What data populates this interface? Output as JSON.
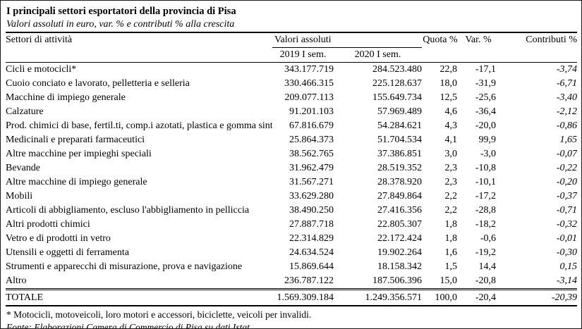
{
  "title": "I principali settori esportatori della provincia di Pisa",
  "subtitle": "Valori assoluti in euro, var. % e contributi % alla crescita",
  "table": {
    "headers": {
      "sector": "Settori di attività",
      "group_values": "Valori assoluti",
      "col_2019": "2019 I sem.",
      "col_2020": "2020 I sem.",
      "quota": "Quota %",
      "var": "Var. %",
      "contrib": "Contributi %"
    },
    "rows": [
      {
        "sector": "Cicli e motocicli*",
        "v2019": "343.177.719",
        "v2020": "284.523.480",
        "quota": "22,8",
        "var": "-17,1",
        "contrib": "-3,74"
      },
      {
        "sector": "Cuoio conciato e lavorato, pelletteria e selleria",
        "v2019": "330.466.315",
        "v2020": "225.128.637",
        "quota": "18,0",
        "var": "-31,9",
        "contrib": "-6,71"
      },
      {
        "sector": "Macchine di impiego generale",
        "v2019": "209.077.113",
        "v2020": "155.649.734",
        "quota": "12,5",
        "var": "-25,6",
        "contrib": "-3,40"
      },
      {
        "sector": "Calzature",
        "v2019": "91.201.103",
        "v2020": "57.969.489",
        "quota": "4,6",
        "var": "-36,4",
        "contrib": "-2,12"
      },
      {
        "sector": "Prod. chimici di base, fertil.ti, comp.i azotati, plastica e gomma sint.",
        "v2019": "67.816.679",
        "v2020": "54.284.621",
        "quota": "4,3",
        "var": "-20,0",
        "contrib": "-0,86"
      },
      {
        "sector": "Medicinali e preparati farmaceutici",
        "v2019": "25.864.373",
        "v2020": "51.704.534",
        "quota": "4,1",
        "var": "99,9",
        "contrib": "1,65"
      },
      {
        "sector": "Altre macchine per impieghi speciali",
        "v2019": "38.562.765",
        "v2020": "37.386.851",
        "quota": "3,0",
        "var": "-3,0",
        "contrib": "-0,07"
      },
      {
        "sector": "Bevande",
        "v2019": "31.962.479",
        "v2020": "28.519.352",
        "quota": "2,3",
        "var": "-10,8",
        "contrib": "-0,22"
      },
      {
        "sector": "Altre macchine di impiego generale",
        "v2019": "31.567.271",
        "v2020": "28.378.920",
        "quota": "2,3",
        "var": "-10,1",
        "contrib": "-0,20"
      },
      {
        "sector": "Mobili",
        "v2019": "33.629.280",
        "v2020": "27.849.864",
        "quota": "2,2",
        "var": "-17,2",
        "contrib": "-0,37"
      },
      {
        "sector": "Articoli di abbigliamento, escluso l'abbigliamento in pelliccia",
        "v2019": "38.490.250",
        "v2020": "27.416.356",
        "quota": "2,2",
        "var": "-28,8",
        "contrib": "-0,71"
      },
      {
        "sector": "Altri prodotti chimici",
        "v2019": "27.887.718",
        "v2020": "22.805.307",
        "quota": "1,8",
        "var": "-18,2",
        "contrib": "-0,32"
      },
      {
        "sector": "Vetro e di prodotti in vetro",
        "v2019": "22.314.829",
        "v2020": "22.172.424",
        "quota": "1,8",
        "var": "-0,6",
        "contrib": "-0,01"
      },
      {
        "sector": "Utensili e oggetti di ferramenta",
        "v2019": "24.634.524",
        "v2020": "19.902.264",
        "quota": "1,6",
        "var": "-19,2",
        "contrib": "-0,30"
      },
      {
        "sector": "Strumenti e apparecchi di misurazione, prova e navigazione",
        "v2019": "15.869.644",
        "v2020": "18.158.342",
        "quota": "1,5",
        "var": "14,4",
        "contrib": "0,15"
      },
      {
        "sector": "Altro",
        "v2019": "236.787.122",
        "v2020": "187.506.396",
        "quota": "15,0",
        "var": "-20,8",
        "contrib": "-3,14"
      }
    ],
    "total": {
      "sector": "TOTALE",
      "v2019": "1.569.309.184",
      "v2020": "1.249.356.571",
      "quota": "100,0",
      "var": "-20,4",
      "contrib": "-20,39"
    }
  },
  "footnotes": {
    "asterisk": "* Motocicli, motoveicoli, loro motori e accessori, biciclette, veicoli per invalidi.",
    "source": "Fonte: Elaborazioni Camera di Commercio di Pisa su dati Istat"
  },
  "colors": {
    "text": "#000000",
    "background": "#ffffff",
    "rule": "#000000"
  }
}
